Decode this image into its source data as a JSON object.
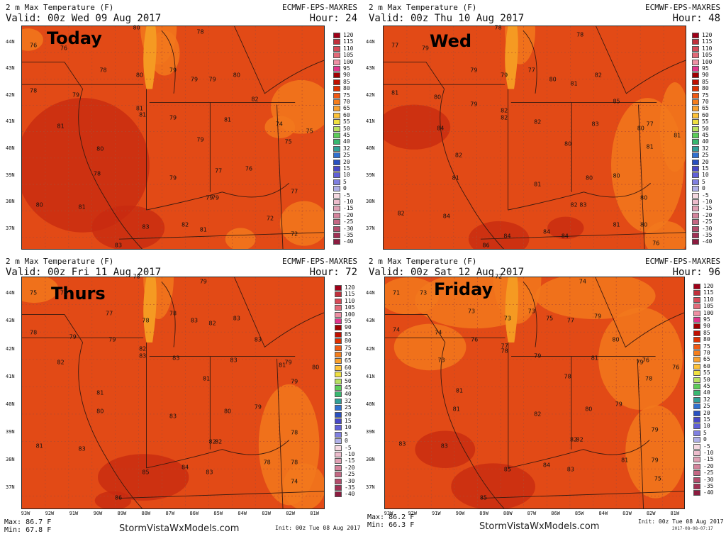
{
  "legend": {
    "levels": [
      "120",
      "115",
      "110",
      "105",
      "100",
      "95",
      "90",
      "85",
      "80",
      "75",
      "70",
      "65",
      "60",
      "55",
      "50",
      "45",
      "40",
      "32",
      "25",
      "20",
      "15",
      "10",
      "5",
      "0",
      "-5",
      "-10",
      "-15",
      "-20",
      "-25",
      "-30",
      "-35",
      "-40"
    ],
    "colors": [
      "#a00018",
      "#c0303c",
      "#d84a58",
      "#e26a78",
      "#ee90a4",
      "#e2348c",
      "#a00000",
      "#c01000",
      "#e03000",
      "#ef5a14",
      "#f57e1c",
      "#f9a02c",
      "#fdc238",
      "#f0e040",
      "#b8e060",
      "#5ccc58",
      "#38b870",
      "#30a098",
      "#3070d0",
      "#2850c0",
      "#4848c8",
      "#6060d8",
      "#8080e0",
      "#b0b0e8",
      "#f4d8e0",
      "#ecbccc",
      "#e0a0b4",
      "#d4849c",
      "#c46884",
      "#b44c6c",
      "#a03054",
      "#8c1c40"
    ]
  },
  "lat_labels": [
    "44N",
    "43N",
    "42N",
    "41N",
    "40N",
    "39N",
    "38N",
    "37N"
  ],
  "lon_labels": [
    "93W",
    "92W",
    "91W",
    "90W",
    "89W",
    "88W",
    "87W",
    "86W",
    "85W",
    "84W",
    "83W",
    "82W",
    "81W"
  ],
  "panels": [
    {
      "line1": "2 m Max Temperature (F)",
      "line2": "Valid: 00z Wed 09 Aug 2017",
      "model": "ECMWF-EPS-MAXRES",
      "hour": "Hour: 24",
      "day": "Today",
      "values": [
        {
          "t": "80",
          "x": 0.38,
          "y": 0.01
        },
        {
          "t": "78",
          "x": 0.59,
          "y": 0.03
        },
        {
          "t": "76",
          "x": 0.04,
          "y": 0.09
        },
        {
          "t": "76",
          "x": 0.14,
          "y": 0.1
        },
        {
          "t": "78",
          "x": 0.27,
          "y": 0.2
        },
        {
          "t": "80",
          "x": 0.39,
          "y": 0.22
        },
        {
          "t": "79",
          "x": 0.5,
          "y": 0.2
        },
        {
          "t": "79",
          "x": 0.57,
          "y": 0.24
        },
        {
          "t": "79",
          "x": 0.63,
          "y": 0.24
        },
        {
          "t": "80",
          "x": 0.71,
          "y": 0.22
        },
        {
          "t": "78",
          "x": 0.04,
          "y": 0.29
        },
        {
          "t": "79",
          "x": 0.18,
          "y": 0.31
        },
        {
          "t": "82",
          "x": 0.77,
          "y": 0.33
        },
        {
          "t": "81",
          "x": 0.39,
          "y": 0.37
        },
        {
          "t": "81",
          "x": 0.4,
          "y": 0.4
        },
        {
          "t": "79",
          "x": 0.5,
          "y": 0.41
        },
        {
          "t": "81",
          "x": 0.68,
          "y": 0.42
        },
        {
          "t": "74",
          "x": 0.85,
          "y": 0.44
        },
        {
          "t": "75",
          "x": 0.95,
          "y": 0.47
        },
        {
          "t": "81",
          "x": 0.13,
          "y": 0.45
        },
        {
          "t": "79",
          "x": 0.59,
          "y": 0.51
        },
        {
          "t": "75",
          "x": 0.88,
          "y": 0.52
        },
        {
          "t": "80",
          "x": 0.26,
          "y": 0.55
        },
        {
          "t": "78",
          "x": 0.25,
          "y": 0.66
        },
        {
          "t": "79",
          "x": 0.5,
          "y": 0.68
        },
        {
          "t": "77",
          "x": 0.65,
          "y": 0.65
        },
        {
          "t": "76",
          "x": 0.75,
          "y": 0.64
        },
        {
          "t": "77",
          "x": 0.9,
          "y": 0.74
        },
        {
          "t": "79",
          "x": 0.62,
          "y": 0.77
        },
        {
          "t": "79",
          "x": 0.64,
          "y": 0.77
        },
        {
          "t": "80",
          "x": 0.06,
          "y": 0.8
        },
        {
          "t": "81",
          "x": 0.2,
          "y": 0.81
        },
        {
          "t": "72",
          "x": 0.82,
          "y": 0.86
        },
        {
          "t": "83",
          "x": 0.41,
          "y": 0.9
        },
        {
          "t": "82",
          "x": 0.54,
          "y": 0.89
        },
        {
          "t": "81",
          "x": 0.6,
          "y": 0.91
        },
        {
          "t": "72",
          "x": 0.9,
          "y": 0.93
        },
        {
          "t": "83",
          "x": 0.32,
          "y": 0.98
        }
      ],
      "max": "",
      "min": "",
      "brand": "",
      "init": ""
    },
    {
      "line1": "2 m Max Temperature (F)",
      "line2": "Valid: 00z Thu 10 Aug 2017",
      "model": "ECMWF-EPS-MAXRES",
      "hour": "Hour: 48",
      "day": "Wed",
      "values": [
        {
          "t": "78",
          "x": 0.38,
          "y": 0.01
        },
        {
          "t": "78",
          "x": 0.65,
          "y": 0.04
        },
        {
          "t": "77",
          "x": 0.04,
          "y": 0.09
        },
        {
          "t": "79",
          "x": 0.14,
          "y": 0.1
        },
        {
          "t": "79",
          "x": 0.3,
          "y": 0.2
        },
        {
          "t": "79",
          "x": 0.4,
          "y": 0.22
        },
        {
          "t": "77",
          "x": 0.49,
          "y": 0.2
        },
        {
          "t": "80",
          "x": 0.56,
          "y": 0.24
        },
        {
          "t": "81",
          "x": 0.63,
          "y": 0.26
        },
        {
          "t": "82",
          "x": 0.71,
          "y": 0.22
        },
        {
          "t": "81",
          "x": 0.04,
          "y": 0.3
        },
        {
          "t": "80",
          "x": 0.18,
          "y": 0.32
        },
        {
          "t": "79",
          "x": 0.3,
          "y": 0.35
        },
        {
          "t": "85",
          "x": 0.77,
          "y": 0.34
        },
        {
          "t": "82",
          "x": 0.4,
          "y": 0.38
        },
        {
          "t": "82",
          "x": 0.4,
          "y": 0.41
        },
        {
          "t": "82",
          "x": 0.51,
          "y": 0.43
        },
        {
          "t": "83",
          "x": 0.7,
          "y": 0.44
        },
        {
          "t": "80",
          "x": 0.85,
          "y": 0.46
        },
        {
          "t": "77",
          "x": 0.88,
          "y": 0.44
        },
        {
          "t": "81",
          "x": 0.97,
          "y": 0.49
        },
        {
          "t": "84",
          "x": 0.19,
          "y": 0.46
        },
        {
          "t": "80",
          "x": 0.61,
          "y": 0.53
        },
        {
          "t": "81",
          "x": 0.88,
          "y": 0.54
        },
        {
          "t": "82",
          "x": 0.25,
          "y": 0.58
        },
        {
          "t": "81",
          "x": 0.24,
          "y": 0.68
        },
        {
          "t": "81",
          "x": 0.51,
          "y": 0.71
        },
        {
          "t": "80",
          "x": 0.68,
          "y": 0.68
        },
        {
          "t": "80",
          "x": 0.77,
          "y": 0.67
        },
        {
          "t": "80",
          "x": 0.86,
          "y": 0.77
        },
        {
          "t": "82",
          "x": 0.63,
          "y": 0.8
        },
        {
          "t": "83",
          "x": 0.66,
          "y": 0.8
        },
        {
          "t": "82",
          "x": 0.06,
          "y": 0.84
        },
        {
          "t": "84",
          "x": 0.21,
          "y": 0.85
        },
        {
          "t": "81",
          "x": 0.77,
          "y": 0.89
        },
        {
          "t": "80",
          "x": 0.86,
          "y": 0.89
        },
        {
          "t": "84",
          "x": 0.41,
          "y": 0.94
        },
        {
          "t": "84",
          "x": 0.54,
          "y": 0.92
        },
        {
          "t": "84",
          "x": 0.6,
          "y": 0.94
        },
        {
          "t": "76",
          "x": 0.9,
          "y": 0.97
        },
        {
          "t": "86",
          "x": 0.34,
          "y": 1.04
        }
      ],
      "max": "",
      "min": "",
      "brand": "",
      "init": ""
    },
    {
      "line1": "2 m Max Temperature (F)",
      "line2": "Valid: 00z Fri 11 Aug 2017",
      "model": "ECMWF-EPS-MAXRES",
      "hour": "Hour: 72",
      "day": "Thurs",
      "values": [
        {
          "t": "78",
          "x": 0.38,
          "y": 0.0
        },
        {
          "t": "79",
          "x": 0.6,
          "y": 0.02
        },
        {
          "t": "75",
          "x": 0.04,
          "y": 0.07
        },
        {
          "t": "75",
          "x": 0.14,
          "y": 0.07
        },
        {
          "t": "77",
          "x": 0.29,
          "y": 0.16
        },
        {
          "t": "78",
          "x": 0.5,
          "y": 0.16
        },
        {
          "t": "78",
          "x": 0.41,
          "y": 0.19
        },
        {
          "t": "83",
          "x": 0.57,
          "y": 0.19
        },
        {
          "t": "82",
          "x": 0.63,
          "y": 0.2
        },
        {
          "t": "83",
          "x": 0.71,
          "y": 0.18
        },
        {
          "t": "78",
          "x": 0.04,
          "y": 0.24
        },
        {
          "t": "79",
          "x": 0.17,
          "y": 0.26
        },
        {
          "t": "79",
          "x": 0.3,
          "y": 0.27
        },
        {
          "t": "83",
          "x": 0.78,
          "y": 0.27
        },
        {
          "t": "82",
          "x": 0.4,
          "y": 0.31
        },
        {
          "t": "83",
          "x": 0.4,
          "y": 0.34
        },
        {
          "t": "83",
          "x": 0.51,
          "y": 0.35
        },
        {
          "t": "83",
          "x": 0.7,
          "y": 0.36
        },
        {
          "t": "81",
          "x": 0.86,
          "y": 0.38
        },
        {
          "t": "79",
          "x": 0.88,
          "y": 0.37
        },
        {
          "t": "80",
          "x": 0.97,
          "y": 0.39
        },
        {
          "t": "82",
          "x": 0.13,
          "y": 0.37
        },
        {
          "t": "81",
          "x": 0.61,
          "y": 0.44
        },
        {
          "t": "79",
          "x": 0.9,
          "y": 0.45
        },
        {
          "t": "81",
          "x": 0.26,
          "y": 0.5
        },
        {
          "t": "80",
          "x": 0.26,
          "y": 0.58
        },
        {
          "t": "83",
          "x": 0.5,
          "y": 0.6
        },
        {
          "t": "80",
          "x": 0.68,
          "y": 0.58
        },
        {
          "t": "79",
          "x": 0.78,
          "y": 0.56
        },
        {
          "t": "78",
          "x": 0.9,
          "y": 0.67
        },
        {
          "t": "82",
          "x": 0.63,
          "y": 0.71
        },
        {
          "t": "82",
          "x": 0.65,
          "y": 0.71
        },
        {
          "t": "81",
          "x": 0.06,
          "y": 0.73
        },
        {
          "t": "83",
          "x": 0.2,
          "y": 0.74
        },
        {
          "t": "78",
          "x": 0.81,
          "y": 0.8
        },
        {
          "t": "78",
          "x": 0.9,
          "y": 0.8
        },
        {
          "t": "85",
          "x": 0.41,
          "y": 0.84
        },
        {
          "t": "84",
          "x": 0.54,
          "y": 0.82
        },
        {
          "t": "83",
          "x": 0.62,
          "y": 0.84
        },
        {
          "t": "74",
          "x": 0.9,
          "y": 0.88
        },
        {
          "t": "86",
          "x": 0.32,
          "y": 0.95
        }
      ],
      "max": "Max: 86.7 F",
      "min": "Min: 67.8 F",
      "brand": "StormVistaWxModels.com",
      "init": "Init: 00z Tue 08 Aug 2017"
    },
    {
      "line1": "2 m Max Temperature (F)",
      "line2": "Valid: 00z Sat 12 Aug 2017",
      "model": "ECMWF-EPS-MAXRES",
      "hour": "Hour: 96",
      "day": "Friday",
      "values": [
        {
          "t": "72",
          "x": 0.38,
          "y": 0.0
        },
        {
          "t": "74",
          "x": 0.66,
          "y": 0.02
        },
        {
          "t": "71",
          "x": 0.04,
          "y": 0.07
        },
        {
          "t": "73",
          "x": 0.13,
          "y": 0.07
        },
        {
          "t": "73",
          "x": 0.29,
          "y": 0.15
        },
        {
          "t": "73",
          "x": 0.49,
          "y": 0.15
        },
        {
          "t": "73",
          "x": 0.41,
          "y": 0.18
        },
        {
          "t": "75",
          "x": 0.55,
          "y": 0.18
        },
        {
          "t": "77",
          "x": 0.62,
          "y": 0.19
        },
        {
          "t": "79",
          "x": 0.71,
          "y": 0.17
        },
        {
          "t": "74",
          "x": 0.04,
          "y": 0.23
        },
        {
          "t": "74",
          "x": 0.18,
          "y": 0.24
        },
        {
          "t": "76",
          "x": 0.3,
          "y": 0.27
        },
        {
          "t": "80",
          "x": 0.77,
          "y": 0.27
        },
        {
          "t": "77",
          "x": 0.4,
          "y": 0.3
        },
        {
          "t": "78",
          "x": 0.4,
          "y": 0.32
        },
        {
          "t": "79",
          "x": 0.51,
          "y": 0.34
        },
        {
          "t": "81",
          "x": 0.7,
          "y": 0.35
        },
        {
          "t": "79",
          "x": 0.85,
          "y": 0.37
        },
        {
          "t": "76",
          "x": 0.87,
          "y": 0.36
        },
        {
          "t": "76",
          "x": 0.97,
          "y": 0.39
        },
        {
          "t": "73",
          "x": 0.19,
          "y": 0.36
        },
        {
          "t": "78",
          "x": 0.61,
          "y": 0.43
        },
        {
          "t": "78",
          "x": 0.88,
          "y": 0.44
        },
        {
          "t": "81",
          "x": 0.25,
          "y": 0.49
        },
        {
          "t": "81",
          "x": 0.24,
          "y": 0.57
        },
        {
          "t": "82",
          "x": 0.51,
          "y": 0.59
        },
        {
          "t": "80",
          "x": 0.68,
          "y": 0.57
        },
        {
          "t": "79",
          "x": 0.78,
          "y": 0.55
        },
        {
          "t": "79",
          "x": 0.9,
          "y": 0.66
        },
        {
          "t": "82",
          "x": 0.63,
          "y": 0.7
        },
        {
          "t": "82",
          "x": 0.65,
          "y": 0.7
        },
        {
          "t": "83",
          "x": 0.06,
          "y": 0.72
        },
        {
          "t": "83",
          "x": 0.2,
          "y": 0.73
        },
        {
          "t": "81",
          "x": 0.8,
          "y": 0.79
        },
        {
          "t": "79",
          "x": 0.9,
          "y": 0.79
        },
        {
          "t": "85",
          "x": 0.41,
          "y": 0.83
        },
        {
          "t": "84",
          "x": 0.54,
          "y": 0.81
        },
        {
          "t": "83",
          "x": 0.62,
          "y": 0.83
        },
        {
          "t": "75",
          "x": 0.91,
          "y": 0.87
        },
        {
          "t": "85",
          "x": 0.33,
          "y": 0.95
        }
      ],
      "max": "Max: 86.2 F",
      "min": "Min: 66.3 F",
      "brand": "StormVistaWxModels.com",
      "init": "Init: 00z Tue 08 Aug 2017",
      "stamp": "2017-08-08-07:17"
    }
  ]
}
